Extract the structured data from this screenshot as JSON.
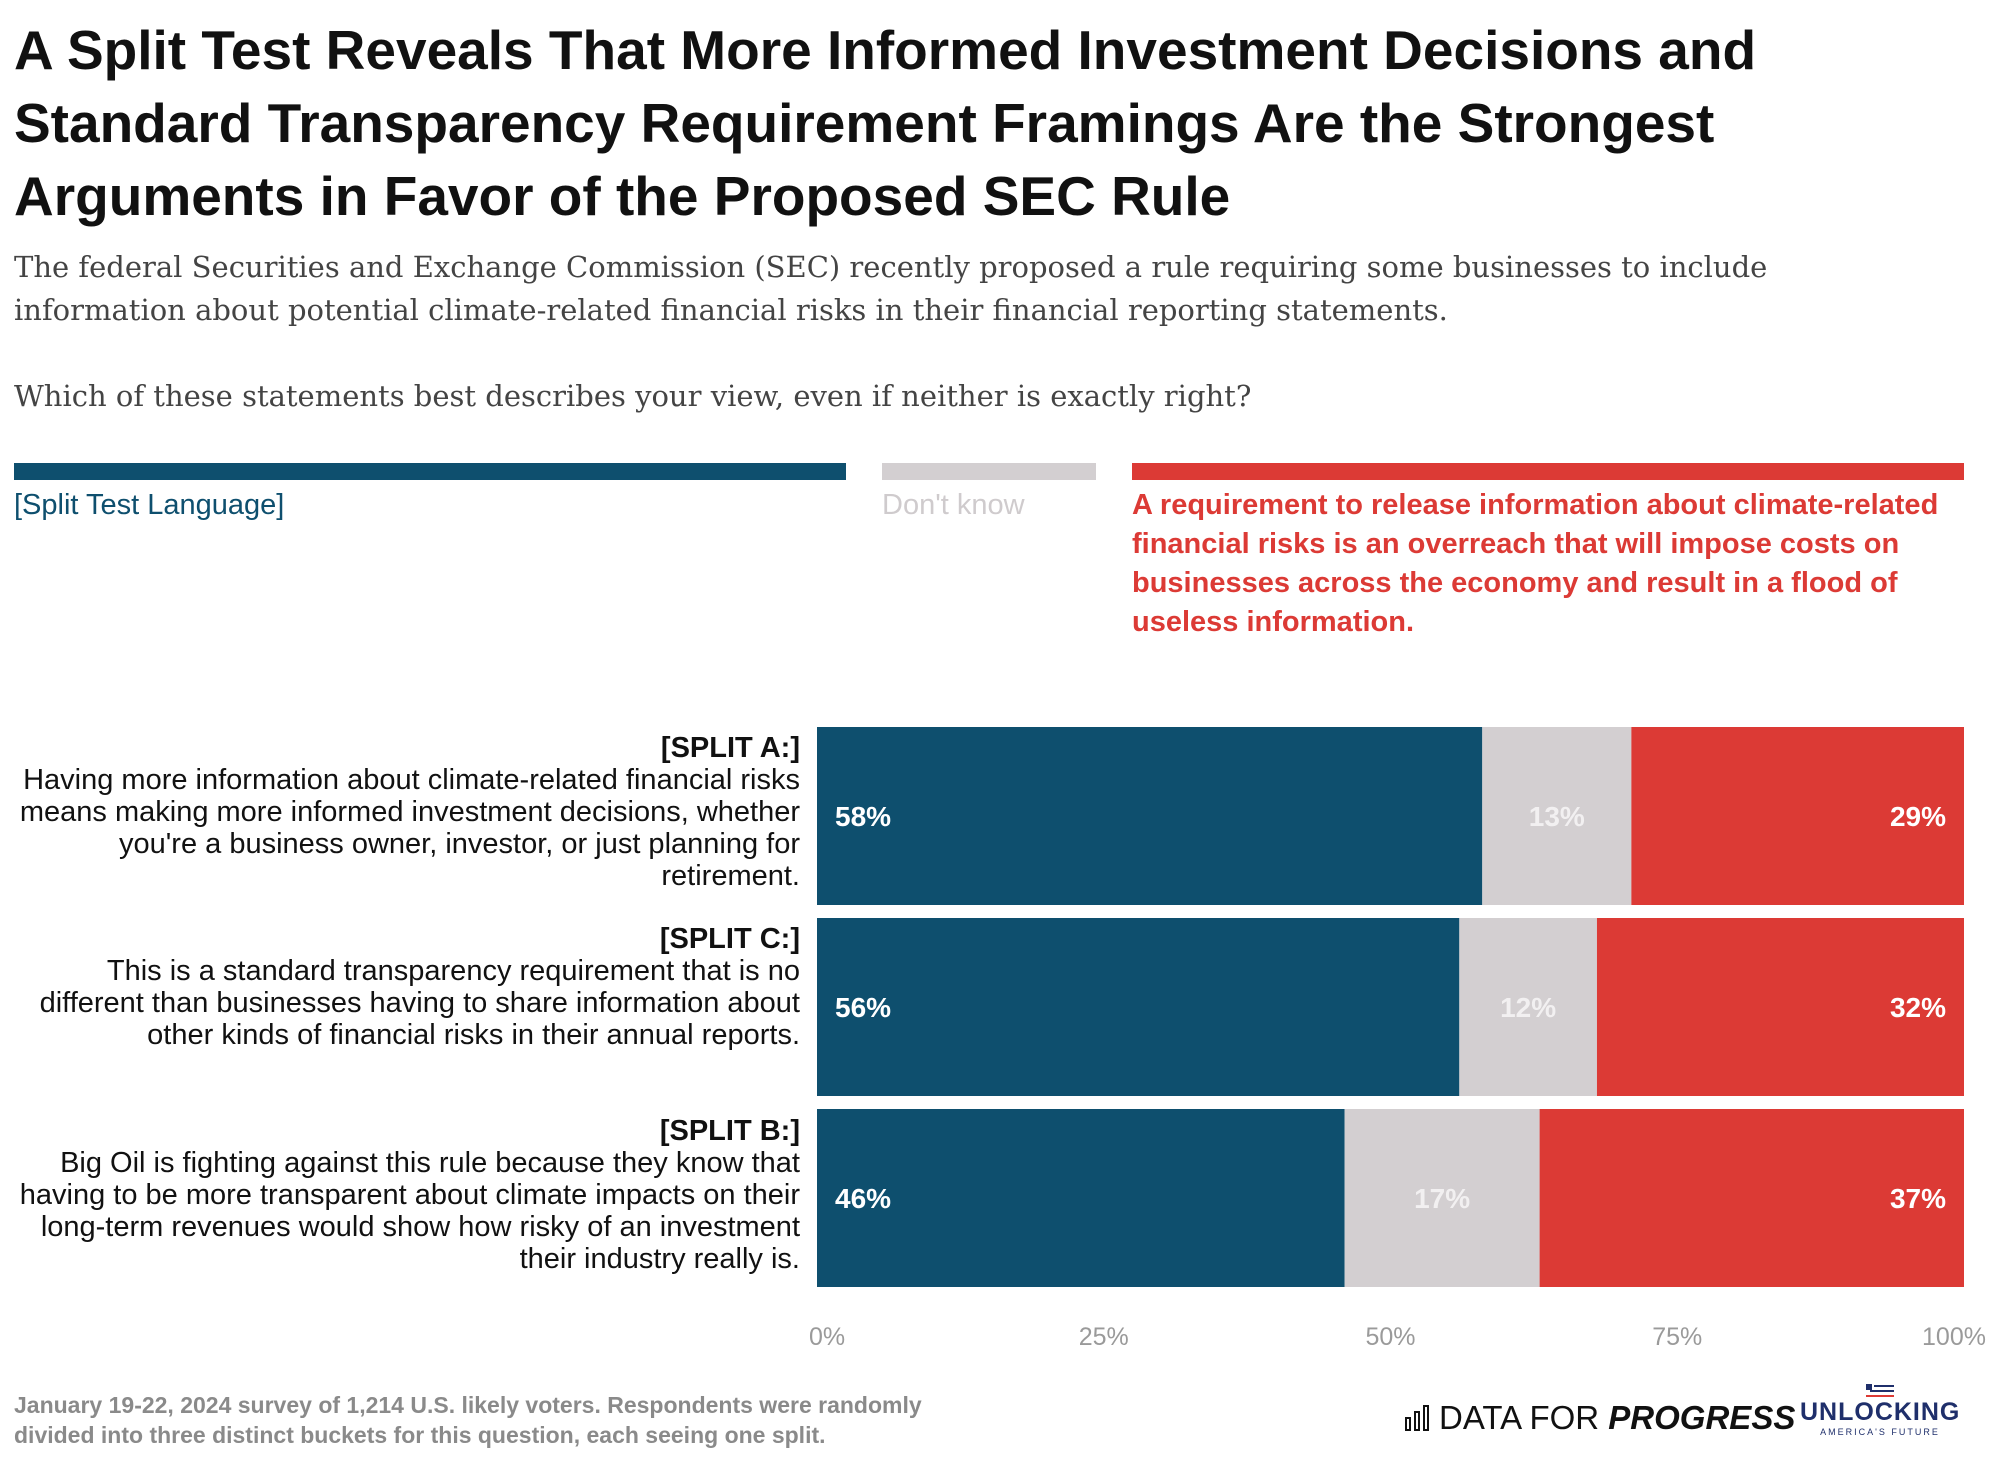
{
  "title": "A Split Test Reveals That More Informed Investment Decisions and Standard Transparency Requirement Framings Are the Strongest Arguments in Favor of the Proposed SEC Rule",
  "subtitle": "The federal Securities and Exchange Commission (SEC) recently proposed a rule requiring some businesses to include information about potential climate-related financial risks in their financial reporting statements.",
  "question": "Which of these statements best describes your view, even if neither is exactly right?",
  "legend": {
    "split": {
      "label": "[Split Test Language]",
      "color": "#0e4f6e",
      "text_color": "#0e4f6e"
    },
    "dont_know": {
      "label": "Don't know",
      "color": "#d3cfd1",
      "text_color": "#cfcbcd"
    },
    "oppose": {
      "label": "A requirement to release information about climate-related financial risks is an overreach that will impose costs on businesses across the economy and result in a flood of useless information.",
      "color": "#dc3a35",
      "text_color": "#dc3a35"
    }
  },
  "rows": [
    {
      "split": "[SPLIT A:]",
      "text": "Having more information about climate-related financial risks means making more informed investment decisions, whether you're a business owner, investor, or just planning for retirement."
    },
    {
      "split": "[SPLIT C:]",
      "text": "This is a standard transparency requirement that is no different than businesses having to share information about other kinds of financial risks in their annual reports."
    },
    {
      "split": "[SPLIT B:]",
      "text": "Big Oil is fighting against this rule because they know that having to be more transparent about climate impacts on their long-term revenues would show how risky of an investment their industry really is."
    }
  ],
  "chart_data": {
    "type": "bar",
    "orientation": "horizontal",
    "stacked": true,
    "categories": [
      "[SPLIT A:]",
      "[SPLIT C:]",
      "[SPLIT B:]"
    ],
    "series": [
      {
        "name": "[Split Test Language]",
        "values": [
          58,
          56,
          46
        ],
        "labels": [
          "58%",
          "56%",
          "46%"
        ],
        "color": "#0e4f6e"
      },
      {
        "name": "Don't know",
        "values": [
          13,
          12,
          17
        ],
        "labels": [
          "13%",
          "12%",
          "17%"
        ],
        "color": "#d3cfd1"
      },
      {
        "name": "A requirement to release information about climate-related financial risks is an overreach that will impose costs on businesses across the economy and result in a flood of useless information.",
        "values": [
          29,
          32,
          37
        ],
        "labels": [
          "29%",
          "32%",
          "37%"
        ],
        "color": "#dc3a35"
      }
    ],
    "xlim": [
      0,
      100
    ],
    "xticks": [
      0,
      25,
      50,
      75,
      100
    ],
    "xtick_labels": [
      "0%",
      "25%",
      "50%",
      "75%",
      "100%"
    ],
    "grid": false,
    "legend_position": "top"
  },
  "footer": {
    "note": "January 19-22, 2024 survey of 1,214 U.S. likely voters. Respondents were randomly divided into three distinct buckets for this question, each seeing one split.",
    "logo_dfp_part1": "DATA FOR",
    "logo_dfp_part2": "PROGRESS",
    "logo_ua_main": "UNLOCKING",
    "logo_ua_sub": "AMERICA'S FUTURE"
  }
}
